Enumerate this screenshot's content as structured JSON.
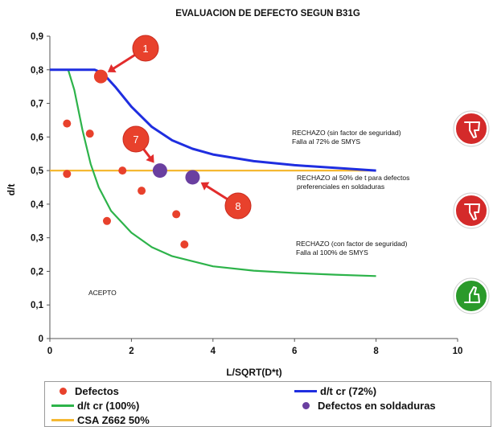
{
  "chart_data": {
    "type": "scatter",
    "title": "EVALUACION DE DEFECTO SEGUN B31G",
    "xlabel": "L/SQRT(D*t)",
    "ylabel": "d/t",
    "xlim": [
      0,
      10
    ],
    "ylim": [
      0,
      0.9
    ],
    "xticks": [
      "0",
      "2",
      "4",
      "6",
      "8",
      "10"
    ],
    "yticks": [
      "0",
      "0,1",
      "0,2",
      "0,3",
      "0,4",
      "0,5",
      "0,6",
      "0,7",
      "0,8",
      "0,9"
    ],
    "grid": false,
    "legend_position": "bottom",
    "series": [
      {
        "name": "Defectos",
        "kind": "points",
        "color": "#e8412c",
        "points": [
          [
            0.42,
            0.64
          ],
          [
            0.98,
            0.61
          ],
          [
            1.78,
            0.5
          ],
          [
            0.42,
            0.49
          ],
          [
            2.25,
            0.44
          ],
          [
            1.4,
            0.35
          ],
          [
            3.1,
            0.37
          ],
          [
            3.3,
            0.28
          ],
          [
            1.25,
            0.78
          ]
        ]
      },
      {
        "name": "Defectos en soldaduras",
        "kind": "points",
        "color": "#6a3fa0",
        "points": [
          [
            2.7,
            0.5
          ],
          [
            3.5,
            0.48
          ]
        ]
      },
      {
        "name": "d/t cr (72%)",
        "kind": "line",
        "color": "#1f2ee0",
        "points": [
          [
            0,
            0.8
          ],
          [
            1.1,
            0.8
          ],
          [
            1.3,
            0.79
          ],
          [
            1.6,
            0.75
          ],
          [
            2.0,
            0.69
          ],
          [
            2.5,
            0.63
          ],
          [
            3.0,
            0.59
          ],
          [
            3.5,
            0.565
          ],
          [
            4.0,
            0.548
          ],
          [
            5.0,
            0.528
          ],
          [
            6.0,
            0.516
          ],
          [
            7.0,
            0.508
          ],
          [
            8.0,
            0.5
          ]
        ]
      },
      {
        "name": "d/t cr (100%)",
        "kind": "line",
        "color": "#2db34a",
        "points": [
          [
            0,
            0.8
          ],
          [
            0.45,
            0.8
          ],
          [
            0.6,
            0.74
          ],
          [
            0.8,
            0.62
          ],
          [
            1.0,
            0.52
          ],
          [
            1.2,
            0.45
          ],
          [
            1.5,
            0.38
          ],
          [
            2.0,
            0.315
          ],
          [
            2.5,
            0.272
          ],
          [
            3.0,
            0.245
          ],
          [
            4.0,
            0.215
          ],
          [
            5.0,
            0.202
          ],
          [
            6.0,
            0.195
          ],
          [
            7.0,
            0.19
          ],
          [
            8.0,
            0.186
          ]
        ]
      },
      {
        "name": "CSA Z662 50%",
        "kind": "line",
        "color": "#f5b833",
        "points": [
          [
            0,
            0.5
          ],
          [
            8.0,
            0.5
          ]
        ]
      }
    ],
    "annotations": [
      {
        "id": "rechazo72",
        "lines": [
          "RECHAZO (sin factor de seguridad)",
          "Falla al 72% de SMYS"
        ]
      },
      {
        "id": "rechazo50",
        "lines": [
          "RECHAZO al 50% de t para defectos",
          "preferenciales en soldaduras"
        ]
      },
      {
        "id": "rechazo100",
        "lines": [
          "RECHAZO (con factor de seguridad)",
          "Falla al 100% de SMYS"
        ]
      },
      {
        "id": "acepto",
        "lines": [
          "ACEPTO"
        ]
      }
    ],
    "callouts": [
      {
        "label": "1",
        "target": [
          1.25,
          0.78
        ]
      },
      {
        "label": "7",
        "target": [
          2.7,
          0.5
        ]
      },
      {
        "label": "8",
        "target": [
          3.5,
          0.48
        ]
      }
    ],
    "icons": [
      {
        "name": "thumbs-down-icon",
        "color": "#d42a2a"
      },
      {
        "name": "thumbs-down-icon",
        "color": "#d42a2a"
      },
      {
        "name": "thumbs-up-icon",
        "color": "#2a9a2a"
      }
    ]
  },
  "legend": {
    "defectos": "Defectos",
    "dtcr72": "d/t cr (72%)",
    "dtcr100": "d/t cr (100%)",
    "soldaduras": "Defectos en soldaduras",
    "csa": "CSA Z662 50%"
  }
}
